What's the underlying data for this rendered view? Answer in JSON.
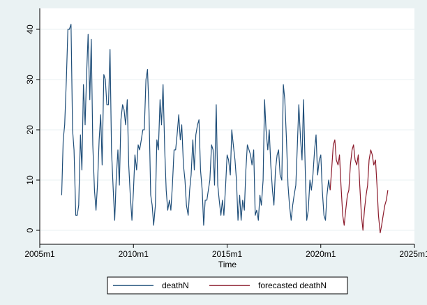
{
  "chart_data": {
    "type": "line",
    "title": "",
    "xlabel": "Time",
    "ylabel": "",
    "x_unit": "year",
    "xlim": [
      2005,
      2025
    ],
    "ylim": [
      -2,
      42
    ],
    "x_ticks": [
      {
        "value": 2005,
        "label": "2005m1"
      },
      {
        "value": 2010,
        "label": "2010m1"
      },
      {
        "value": 2015,
        "label": "2015m1"
      },
      {
        "value": 2020,
        "label": "2020m1"
      },
      {
        "value": 2025,
        "label": "2025m1"
      }
    ],
    "y_ticks": [
      {
        "value": 0,
        "label": "0"
      },
      {
        "value": 10,
        "label": "10"
      },
      {
        "value": 20,
        "label": "20"
      },
      {
        "value": 30,
        "label": "30"
      },
      {
        "value": 40,
        "label": "40"
      }
    ],
    "grid": true,
    "legend_position": "bottom",
    "series": [
      {
        "name": "deathN",
        "color": "#1f4e79",
        "points": [
          [
            2006.17,
            7
          ],
          [
            2006.25,
            18
          ],
          [
            2006.33,
            21
          ],
          [
            2006.42,
            30
          ],
          [
            2006.5,
            40
          ],
          [
            2006.58,
            40
          ],
          [
            2006.67,
            41
          ],
          [
            2006.75,
            20
          ],
          [
            2006.83,
            16
          ],
          [
            2006.92,
            3
          ],
          [
            2007.0,
            3
          ],
          [
            2007.08,
            5
          ],
          [
            2007.17,
            19
          ],
          [
            2007.25,
            12
          ],
          [
            2007.33,
            29
          ],
          [
            2007.42,
            21
          ],
          [
            2007.5,
            31
          ],
          [
            2007.58,
            39
          ],
          [
            2007.67,
            26
          ],
          [
            2007.75,
            38
          ],
          [
            2007.83,
            17
          ],
          [
            2007.92,
            8
          ],
          [
            2008.0,
            4
          ],
          [
            2008.08,
            9
          ],
          [
            2008.17,
            18
          ],
          [
            2008.25,
            23
          ],
          [
            2008.33,
            13
          ],
          [
            2008.42,
            31
          ],
          [
            2008.5,
            30
          ],
          [
            2008.58,
            25
          ],
          [
            2008.67,
            25
          ],
          [
            2008.75,
            36
          ],
          [
            2008.83,
            16
          ],
          [
            2008.92,
            8
          ],
          [
            2009.0,
            2
          ],
          [
            2009.08,
            10
          ],
          [
            2009.17,
            16
          ],
          [
            2009.25,
            9
          ],
          [
            2009.33,
            22
          ],
          [
            2009.42,
            25
          ],
          [
            2009.5,
            24
          ],
          [
            2009.58,
            21
          ],
          [
            2009.67,
            26
          ],
          [
            2009.75,
            13
          ],
          [
            2009.83,
            7
          ],
          [
            2009.92,
            2
          ],
          [
            2010.0,
            8
          ],
          [
            2010.08,
            15
          ],
          [
            2010.17,
            12
          ],
          [
            2010.25,
            17
          ],
          [
            2010.33,
            16
          ],
          [
            2010.42,
            18
          ],
          [
            2010.5,
            20
          ],
          [
            2010.58,
            20
          ],
          [
            2010.67,
            30
          ],
          [
            2010.75,
            32
          ],
          [
            2010.83,
            24
          ],
          [
            2010.92,
            7
          ],
          [
            2011.0,
            5
          ],
          [
            2011.08,
            1
          ],
          [
            2011.17,
            5
          ],
          [
            2011.25,
            18
          ],
          [
            2011.33,
            16
          ],
          [
            2011.42,
            26
          ],
          [
            2011.5,
            21
          ],
          [
            2011.58,
            29
          ],
          [
            2011.67,
            16
          ],
          [
            2011.75,
            8
          ],
          [
            2011.83,
            4
          ],
          [
            2011.92,
            6
          ],
          [
            2012.0,
            4
          ],
          [
            2012.08,
            9
          ],
          [
            2012.17,
            16
          ],
          [
            2012.25,
            16
          ],
          [
            2012.33,
            19
          ],
          [
            2012.42,
            23
          ],
          [
            2012.5,
            18
          ],
          [
            2012.58,
            21
          ],
          [
            2012.67,
            13
          ],
          [
            2012.75,
            10
          ],
          [
            2012.83,
            5
          ],
          [
            2012.92,
            3
          ],
          [
            2013.0,
            8
          ],
          [
            2013.08,
            11
          ],
          [
            2013.17,
            18
          ],
          [
            2013.25,
            12
          ],
          [
            2013.33,
            19
          ],
          [
            2013.42,
            21
          ],
          [
            2013.5,
            22
          ],
          [
            2013.58,
            12
          ],
          [
            2013.67,
            8
          ],
          [
            2013.75,
            1
          ],
          [
            2013.83,
            6
          ],
          [
            2013.92,
            6
          ],
          [
            2014.0,
            8
          ],
          [
            2014.08,
            10
          ],
          [
            2014.17,
            17
          ],
          [
            2014.25,
            16
          ],
          [
            2014.33,
            9
          ],
          [
            2014.42,
            25
          ],
          [
            2014.5,
            9
          ],
          [
            2014.58,
            6
          ],
          [
            2014.67,
            3
          ],
          [
            2014.75,
            6
          ],
          [
            2014.83,
            3
          ],
          [
            2014.92,
            9
          ],
          [
            2015.0,
            15
          ],
          [
            2015.08,
            14
          ],
          [
            2015.17,
            11
          ],
          [
            2015.25,
            20
          ],
          [
            2015.33,
            17
          ],
          [
            2015.42,
            14
          ],
          [
            2015.5,
            10
          ],
          [
            2015.58,
            2
          ],
          [
            2015.67,
            7
          ],
          [
            2015.75,
            2
          ],
          [
            2015.83,
            6
          ],
          [
            2015.92,
            4
          ],
          [
            2016.0,
            12
          ],
          [
            2016.08,
            17
          ],
          [
            2016.17,
            16
          ],
          [
            2016.25,
            15
          ],
          [
            2016.33,
            13
          ],
          [
            2016.42,
            16
          ],
          [
            2016.5,
            3
          ],
          [
            2016.58,
            4
          ],
          [
            2016.67,
            2
          ],
          [
            2016.75,
            7
          ],
          [
            2016.83,
            5
          ],
          [
            2016.92,
            10
          ],
          [
            2017.0,
            26
          ],
          [
            2017.08,
            20
          ],
          [
            2017.17,
            16
          ],
          [
            2017.25,
            20
          ],
          [
            2017.33,
            13
          ],
          [
            2017.42,
            8
          ],
          [
            2017.5,
            5
          ],
          [
            2017.58,
            12
          ],
          [
            2017.67,
            15
          ],
          [
            2017.75,
            16
          ],
          [
            2017.83,
            11
          ],
          [
            2017.92,
            10
          ],
          [
            2018.0,
            29
          ],
          [
            2018.08,
            26
          ],
          [
            2018.17,
            18
          ],
          [
            2018.25,
            9
          ],
          [
            2018.33,
            5
          ],
          [
            2018.42,
            2
          ],
          [
            2018.5,
            5
          ],
          [
            2018.58,
            7
          ],
          [
            2018.67,
            9
          ],
          [
            2018.75,
            17
          ],
          [
            2018.83,
            25
          ],
          [
            2018.92,
            18
          ],
          [
            2019.0,
            14
          ],
          [
            2019.08,
            26
          ],
          [
            2019.17,
            12
          ],
          [
            2019.25,
            2
          ],
          [
            2019.33,
            4
          ],
          [
            2019.42,
            10
          ],
          [
            2019.5,
            8
          ],
          [
            2019.58,
            11
          ],
          [
            2019.67,
            16
          ],
          [
            2019.75,
            19
          ],
          [
            2019.83,
            11
          ],
          [
            2019.92,
            14
          ],
          [
            2020.0,
            15
          ],
          [
            2020.08,
            8
          ],
          [
            2020.17,
            3
          ],
          [
            2020.25,
            2
          ],
          [
            2020.33,
            7
          ],
          [
            2020.42,
            10
          ],
          [
            2020.5,
            8
          ]
        ]
      },
      {
        "name": "forecasted deathN",
        "color": "#8b1a2b",
        "points": [
          [
            2020.5,
            8
          ],
          [
            2020.58,
            12
          ],
          [
            2020.67,
            17
          ],
          [
            2020.75,
            18
          ],
          [
            2020.83,
            14
          ],
          [
            2020.92,
            13
          ],
          [
            2021.0,
            15
          ],
          [
            2021.08,
            9
          ],
          [
            2021.17,
            3
          ],
          [
            2021.25,
            1
          ],
          [
            2021.33,
            4
          ],
          [
            2021.42,
            7
          ],
          [
            2021.5,
            8
          ],
          [
            2021.58,
            13
          ],
          [
            2021.67,
            16
          ],
          [
            2021.75,
            17
          ],
          [
            2021.83,
            14
          ],
          [
            2021.92,
            13
          ],
          [
            2022.0,
            15
          ],
          [
            2022.08,
            9
          ],
          [
            2022.17,
            3
          ],
          [
            2022.25,
            0
          ],
          [
            2022.33,
            4
          ],
          [
            2022.42,
            7
          ],
          [
            2022.5,
            9
          ],
          [
            2022.58,
            14
          ],
          [
            2022.67,
            16
          ],
          [
            2022.75,
            15
          ],
          [
            2022.83,
            13
          ],
          [
            2022.92,
            14
          ],
          [
            2023.0,
            9
          ],
          [
            2023.08,
            3
          ],
          [
            2023.17,
            -0.5
          ],
          [
            2023.25,
            1
          ],
          [
            2023.33,
            3
          ],
          [
            2023.42,
            5
          ],
          [
            2023.5,
            6
          ],
          [
            2023.58,
            8
          ]
        ]
      }
    ]
  }
}
